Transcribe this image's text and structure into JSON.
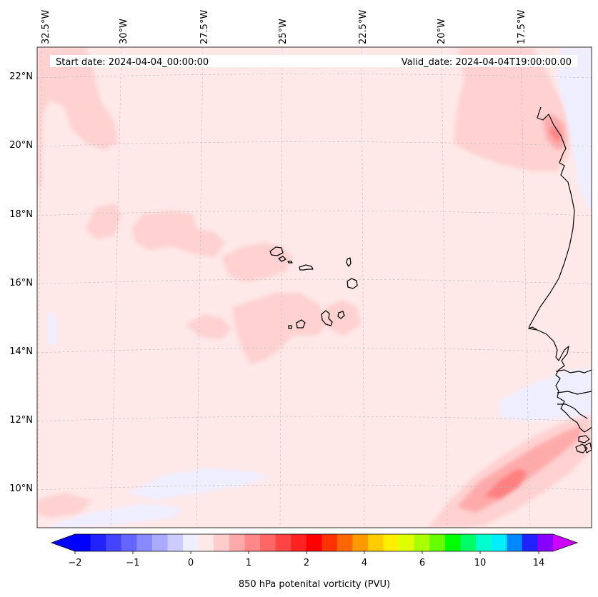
{
  "map": {
    "header": {
      "start_date": "Start date: 2024-04-04_00:00:00",
      "valid_date": "Valid_date: 2024-04-04T19:00:00.00"
    },
    "lon_labels": [
      "32.5°W",
      "30°W",
      "27.5°W",
      "25°W",
      "22.5°W",
      "20°W",
      "17.5°W"
    ],
    "lat_labels": [
      "22°N",
      "20°N",
      "18°N",
      "16°N",
      "14°N",
      "12°N",
      "10°N"
    ],
    "gridlines": true,
    "background_color": "#ffe8e8"
  },
  "colorbar": {
    "label": "850 hPa potenital vorticity (PVU)",
    "tick_labels": [
      "−2",
      "−1",
      "0",
      "1",
      "2",
      "4",
      "6",
      "10",
      "14"
    ],
    "extend": "both",
    "colors": [
      "#0000ff",
      "#2222ff",
      "#4444ff",
      "#6666ff",
      "#8888ff",
      "#aaaaff",
      "#ccccff",
      "#eeeeff",
      "#ffe8e8",
      "#ffcccc",
      "#ffaaaa",
      "#ff8888",
      "#ff6666",
      "#ff4444",
      "#ff2222",
      "#ff0000",
      "#ff3300",
      "#ff6600",
      "#ff9900",
      "#ffcc00",
      "#ffee00",
      "#ddff00",
      "#aaff00",
      "#66ff00",
      "#00ff00",
      "#00ff66",
      "#00ffcc",
      "#00eeff",
      "#0088ff",
      "#2222ff",
      "#8800ff"
    ],
    "under_color": "#0000ff",
    "over_color": "#cc00ff"
  }
}
